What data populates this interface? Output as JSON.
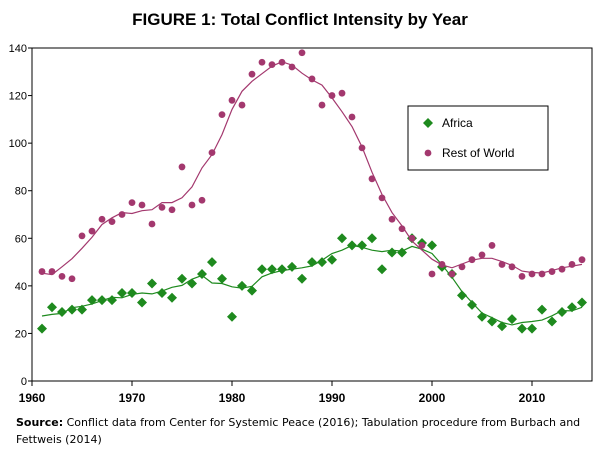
{
  "title": "FIGURE 1:  Total Conflict Intensity by Year",
  "source": {
    "label": "Source:",
    "text": " Conflict data from Center for Systemic Peace (2016); Tabulation procedure from Burbach and Fettweis (2014)"
  },
  "colors": {
    "africa": "#1e8a1e",
    "row": "#a3386e",
    "axis": "#000000",
    "frame": "#000000"
  },
  "chart_data": {
    "type": "scatter",
    "title": "FIGURE 1:  Total Conflict Intensity by Year",
    "xlabel": "",
    "ylabel": "",
    "xlim": [
      1960,
      2016
    ],
    "ylim": [
      0,
      140
    ],
    "x_ticks": [
      1960,
      1970,
      1980,
      1990,
      2000,
      2010
    ],
    "y_ticks": [
      0,
      20,
      40,
      60,
      80,
      100,
      120,
      140
    ],
    "grid": false,
    "legend": "right",
    "series": [
      {
        "name": "Africa",
        "marker": "diamond",
        "color": "#1e8a1e",
        "smoothed_line": true,
        "x": [
          1961,
          1962,
          1963,
          1964,
          1965,
          1966,
          1967,
          1968,
          1969,
          1970,
          1971,
          1972,
          1973,
          1974,
          1975,
          1976,
          1977,
          1978,
          1979,
          1980,
          1981,
          1982,
          1983,
          1984,
          1985,
          1986,
          1987,
          1988,
          1989,
          1990,
          1991,
          1992,
          1993,
          1994,
          1995,
          1996,
          1997,
          1998,
          1999,
          2000,
          2001,
          2002,
          2003,
          2004,
          2005,
          2006,
          2007,
          2008,
          2009,
          2010,
          2011,
          2012,
          2013,
          2014,
          2015
        ],
        "y": [
          22,
          31,
          29,
          30,
          30,
          34,
          34,
          34,
          37,
          37,
          33,
          41,
          37,
          35,
          43,
          41,
          45,
          50,
          43,
          27,
          40,
          38,
          47,
          47,
          47,
          48,
          43,
          50,
          50,
          51,
          60,
          57,
          57,
          60,
          47,
          54,
          54,
          60,
          58,
          57,
          48,
          45,
          36,
          32,
          27,
          25,
          23,
          26,
          22,
          22,
          30,
          25,
          29,
          31,
          33
        ]
      },
      {
        "name": "Rest of World",
        "marker": "circle",
        "color": "#a3386e",
        "smoothed_line": true,
        "x": [
          1961,
          1962,
          1963,
          1964,
          1965,
          1966,
          1967,
          1968,
          1969,
          1970,
          1971,
          1972,
          1973,
          1974,
          1975,
          1976,
          1977,
          1978,
          1979,
          1980,
          1981,
          1982,
          1983,
          1984,
          1985,
          1986,
          1987,
          1988,
          1989,
          1990,
          1991,
          1992,
          1993,
          1994,
          1995,
          1996,
          1997,
          1998,
          1999,
          2000,
          2001,
          2002,
          2003,
          2004,
          2005,
          2006,
          2007,
          2008,
          2009,
          2010,
          2011,
          2012,
          2013,
          2014,
          2015
        ],
        "y": [
          46,
          46,
          44,
          43,
          61,
          63,
          68,
          67,
          70,
          75,
          74,
          66,
          73,
          72,
          90,
          74,
          76,
          96,
          112,
          118,
          116,
          129,
          134,
          133,
          134,
          132,
          138,
          127,
          116,
          120,
          121,
          111,
          98,
          85,
          77,
          68,
          64,
          60,
          57,
          45,
          49,
          45,
          48,
          51,
          53,
          57,
          49,
          48,
          44,
          45,
          45,
          46,
          47,
          49,
          51
        ]
      }
    ]
  }
}
